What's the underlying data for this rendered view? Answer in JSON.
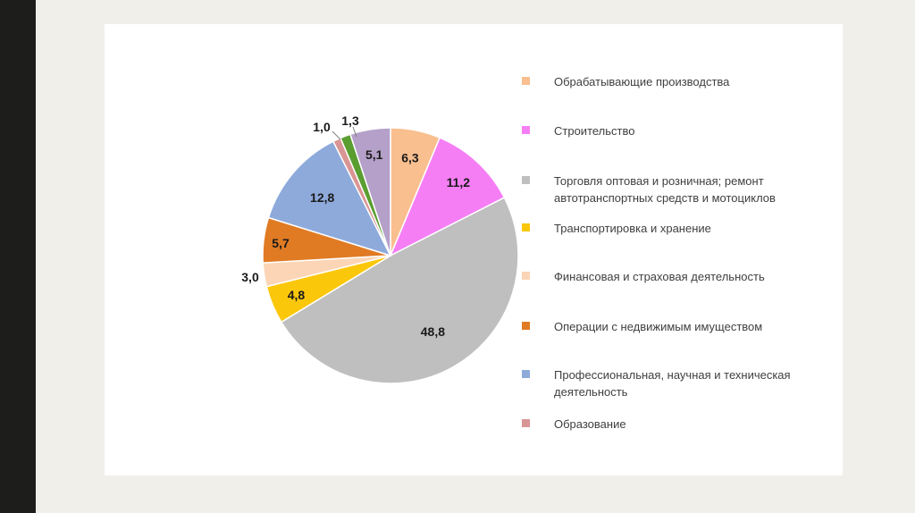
{
  "chart_data": {
    "type": "pie",
    "title": "",
    "slices": [
      {
        "label": "Обрабатывающие производства",
        "value": 6.3,
        "display": "6,3",
        "color": "#f9bf8f"
      },
      {
        "label": "Строительство",
        "value": 11.2,
        "display": "11,2",
        "color": "#f57ef5"
      },
      {
        "label": "Торговля оптовая и розничная; ремонт автотранспортных средств  и мотоциклов",
        "value": 48.8,
        "display": "48,8",
        "color": "#bfbfbf"
      },
      {
        "label": "Транспортировка и хранение",
        "value": 4.8,
        "display": "4,8",
        "color": "#fbc70b"
      },
      {
        "label": "Финансовая и страховая деятельность",
        "value": 3.0,
        "display": "3,0",
        "color": "#fbd5b5"
      },
      {
        "label": "Операции с недвижимым имуществом",
        "value": 5.7,
        "display": "5,7",
        "color": "#e07b24"
      },
      {
        "label": "Профессиональная, научная и техническая деятельность",
        "value": 12.8,
        "display": "12,8",
        "color": "#8eaadb"
      },
      {
        "label": "Образование",
        "value": 1.0,
        "display": "1,0",
        "color": "#d99594"
      },
      {
        "label": "",
        "value": 1.3,
        "display": "1,3",
        "color": "#5a9e31"
      },
      {
        "label": "",
        "value": 5.1,
        "display": "5,1",
        "color": "#b4a0c8"
      }
    ],
    "legend_entries": [
      {
        "label": "Обрабатывающие производства",
        "color": "#f9bf8f"
      },
      {
        "label": "Строительство",
        "color": "#f57ef5"
      },
      {
        "label": "Торговля оптовая и розничная; ремонт автотранспортных средств  и мотоциклов",
        "color": "#bfbfbf"
      },
      {
        "label": "Транспортировка и хранение",
        "color": "#fbc70b"
      },
      {
        "label": "Финансовая и страховая деятельность",
        "color": "#fbd5b5"
      },
      {
        "label": "Операции с недвижимым имуществом",
        "color": "#e07b24"
      },
      {
        "label": "Профессиональная, научная и техническая деятельность",
        "color": "#8eaadb"
      },
      {
        "label": "Образование",
        "color": "#d99594"
      }
    ],
    "legend_placement": "right",
    "start_angle_deg": 0,
    "direction": "clockwise"
  }
}
